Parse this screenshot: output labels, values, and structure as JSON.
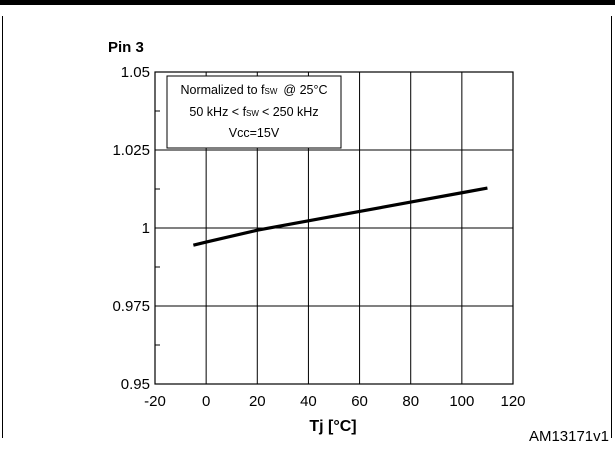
{
  "chart_data": {
    "type": "line",
    "title": "Pin 3",
    "xlabel": "Tj [°C]",
    "ylabel": "",
    "xlim": [
      -20,
      120
    ],
    "ylim": [
      0.95,
      1.05
    ],
    "x_ticks": [
      "-20",
      "0",
      "20",
      "40",
      "60",
      "80",
      "100",
      "120"
    ],
    "y_ticks": [
      "0.95",
      "0.975",
      "1",
      "1.025",
      "1.05"
    ],
    "grid": true,
    "annotation": {
      "lines": [
        "Normalized to f",
        "50 kHz < f",
        "Vcc=15V"
      ],
      "line1_sub": "SW",
      "line1_tail": "@ 25°C",
      "line2_sub": "SW",
      "line2_tail": "< 250 kHz"
    },
    "series": [
      {
        "x": [
          -5,
          0,
          20,
          40,
          60,
          80,
          100,
          110
        ],
        "y": [
          0.9945,
          0.9955,
          0.9993,
          1.0023,
          1.0053,
          1.0083,
          1.0113,
          1.0128
        ]
      }
    ]
  },
  "figure_id": "AM13171v1"
}
